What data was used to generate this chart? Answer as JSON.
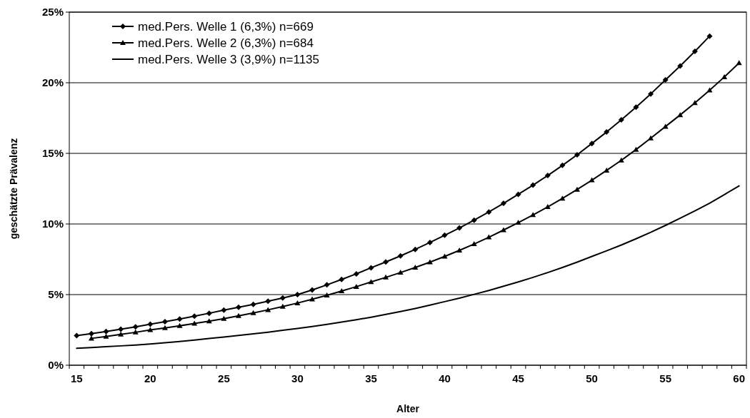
{
  "chart_data": {
    "type": "line",
    "xlabel": "Alter",
    "ylabel": "geschätzte Prävalenz",
    "categories": [
      "15",
      null,
      null,
      null,
      null,
      "20",
      null,
      null,
      null,
      null,
      "25",
      null,
      null,
      null,
      null,
      "30",
      null,
      null,
      null,
      null,
      "35",
      null,
      null,
      null,
      null,
      "40",
      null,
      null,
      null,
      null,
      "45",
      null,
      null,
      null,
      null,
      "50",
      null,
      null,
      null,
      null,
      "55",
      null,
      null,
      null,
      null,
      "60"
    ],
    "series": [
      {
        "name": "med.Pers. Welle 1 (6,3%) n=669",
        "color": "#000000",
        "marker": "diamond",
        "values": [
          2.1,
          2.24,
          2.39,
          2.55,
          2.72,
          2.9,
          3.08,
          3.27,
          3.47,
          3.68,
          3.9,
          4.1,
          4.31,
          4.53,
          4.76,
          5.0,
          5.33,
          5.69,
          6.07,
          6.47,
          6.9,
          7.31,
          7.74,
          8.2,
          8.69,
          9.2,
          9.72,
          10.27,
          10.85,
          11.46,
          12.1,
          12.75,
          13.43,
          14.15,
          14.9,
          15.7,
          16.51,
          17.37,
          18.27,
          19.21,
          20.2,
          21.19,
          22.22,
          23.3,
          null,
          null
        ]
      },
      {
        "name": "med.Pers. Welle 2 (6,3%) n=684",
        "color": "#000000",
        "marker": "triangle",
        "values": [
          null,
          1.9,
          2.03,
          2.18,
          2.33,
          2.5,
          2.64,
          2.79,
          2.95,
          3.12,
          3.3,
          3.5,
          3.7,
          3.92,
          4.15,
          4.4,
          4.67,
          4.95,
          5.25,
          5.56,
          5.9,
          6.22,
          6.56,
          6.92,
          7.3,
          7.7,
          8.13,
          8.58,
          9.06,
          9.57,
          10.1,
          10.64,
          11.21,
          11.81,
          12.44,
          13.1,
          13.79,
          14.51,
          15.27,
          16.07,
          16.9,
          17.72,
          18.57,
          19.47,
          20.41,
          21.4
        ]
      },
      {
        "name": "med.Pers. Welle 3 (3,9%) n=1135",
        "color": "#000000",
        "marker": "none",
        "values": [
          1.2,
          1.25,
          1.31,
          1.37,
          1.43,
          1.5,
          1.59,
          1.68,
          1.78,
          1.89,
          2.0,
          2.11,
          2.22,
          2.34,
          2.47,
          2.6,
          2.74,
          2.89,
          3.05,
          3.22,
          3.4,
          3.6,
          3.8,
          4.02,
          4.25,
          4.5,
          4.75,
          5.02,
          5.29,
          5.59,
          5.9,
          6.22,
          6.56,
          6.92,
          7.3,
          7.7,
          8.1,
          8.51,
          8.95,
          9.41,
          9.9,
          10.41,
          10.93,
          11.47,
          12.08,
          12.7
        ]
      }
    ],
    "ylim": [
      0,
      25
    ],
    "yticks": [
      {
        "value": 0,
        "label": "0%"
      },
      {
        "value": 5,
        "label": "5%"
      },
      {
        "value": 10,
        "label": "10%"
      },
      {
        "value": 15,
        "label": "15%"
      },
      {
        "value": 20,
        "label": "20%"
      },
      {
        "value": 25,
        "label": "25%"
      }
    ],
    "grid": "y",
    "legend": "top left"
  }
}
